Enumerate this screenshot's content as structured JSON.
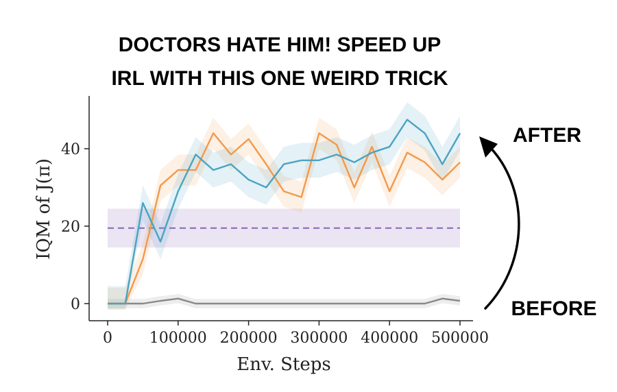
{
  "headline": {
    "line1": "DOCTORS HATE HIM! SPEED UP",
    "line2": "IRL WITH THIS ONE WEIRD TRICK"
  },
  "annotations": {
    "after": "AFTER",
    "before": "BEFORE"
  },
  "chart_data": {
    "type": "line",
    "title": "",
    "xlabel": "Env. Steps",
    "ylabel": "IQM of J(π)",
    "xlim": [
      0,
      500000
    ],
    "ylim": [
      -2,
      53
    ],
    "xticks": [
      0,
      100000,
      200000,
      300000,
      400000,
      500000
    ],
    "xtick_labels": [
      "0",
      "100000",
      "200000",
      "300000",
      "400000",
      "500000"
    ],
    "yticks": [
      0,
      20,
      40
    ],
    "ytick_labels": [
      "0",
      "20",
      "40"
    ],
    "grid": false,
    "legend": "none",
    "x": [
      0,
      25000,
      50000,
      75000,
      100000,
      125000,
      150000,
      175000,
      200000,
      225000,
      250000,
      275000,
      300000,
      325000,
      350000,
      375000,
      400000,
      425000,
      450000,
      475000,
      500000
    ],
    "series": [
      {
        "color": "#4aa3c2",
        "values": [
          0,
          0,
          26,
          16,
          29,
          38.5,
          34.5,
          36,
          32,
          30,
          36,
          37,
          37,
          38.5,
          36.5,
          39,
          40.5,
          47.5,
          44,
          36,
          44
        ],
        "band": 4.5
      },
      {
        "color": "#f2994a",
        "values": [
          0,
          0,
          11.5,
          30.5,
          34.5,
          34.5,
          44,
          38.5,
          42.5,
          36,
          29,
          27.5,
          44,
          41,
          30,
          40.5,
          29,
          39,
          36.5,
          32,
          36.5
        ],
        "band": 4
      },
      {
        "color": "#888888",
        "values": [
          0,
          0,
          0,
          0.7,
          1.3,
          0,
          0,
          0,
          0,
          0,
          0,
          0,
          0,
          0,
          0,
          0,
          0,
          0,
          0,
          1.3,
          0.7
        ],
        "band": 1.2
      }
    ],
    "reference": {
      "color": "#8e6bb8",
      "value": 19.5,
      "band_low": 14.5,
      "band_high": 24.5
    }
  }
}
